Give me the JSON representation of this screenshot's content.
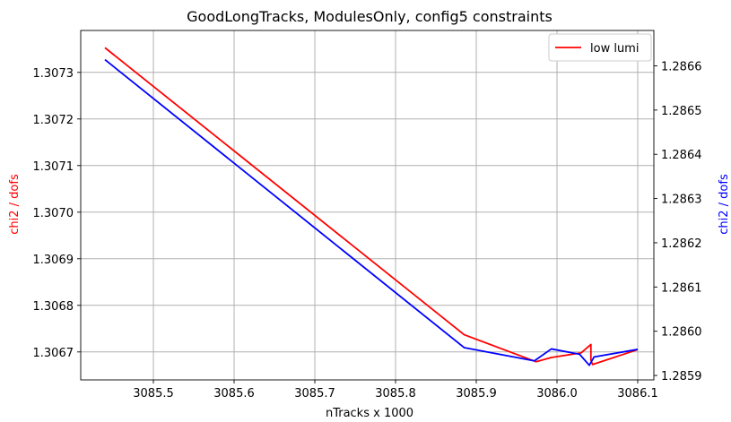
{
  "chart_data": {
    "type": "line",
    "title": "GoodLongTracks, ModulesOnly, config5 constraints",
    "xlabel": "nTracks x 1000",
    "ylabel_left": "chi2 / dofs",
    "ylabel_right": "chi2 / dofs",
    "xlim": [
      3085.41,
      3086.12
    ],
    "ylim_left": [
      1.30664,
      1.30739
    ],
    "ylim_right": [
      1.28589,
      1.28668
    ],
    "xticks": [
      "3085.5",
      "3085.6",
      "3085.7",
      "3085.8",
      "3085.9",
      "3086.0",
      "3086.1"
    ],
    "xtick_values": [
      3085.5,
      3085.6,
      3085.7,
      3085.8,
      3085.9,
      3086.0,
      3086.1
    ],
    "yticks_left": [
      "1.3067",
      "1.3068",
      "1.3069",
      "1.3070",
      "1.3071",
      "1.3072",
      "1.3073"
    ],
    "ytick_values_left": [
      1.3067,
      1.3068,
      1.3069,
      1.307,
      1.3071,
      1.3072,
      1.3073
    ],
    "yticks_right": [
      "1.2859",
      "1.2860",
      "1.2861",
      "1.2862",
      "1.2863",
      "1.2864",
      "1.2865",
      "1.2866"
    ],
    "ytick_values_right": [
      1.2859,
      1.286,
      1.2861,
      1.2862,
      1.2863,
      1.2864,
      1.2865,
      1.2866
    ],
    "grid": true,
    "legend_position": "top-right",
    "series": [
      {
        "name": "low lumi",
        "axis": "left",
        "color": "#ff0000",
        "x": [
          3085.44,
          3085.885,
          3085.974,
          3085.993,
          3086.03,
          3086.042,
          3086.042,
          3086.044,
          3086.1
        ],
        "y": [
          1.307353,
          1.306737,
          1.306679,
          1.306688,
          1.306698,
          1.306716,
          1.306683,
          1.306673,
          1.306705
        ]
      },
      {
        "name": "",
        "axis": "right",
        "color": "#0000ff",
        "x": [
          3085.44,
          3085.885,
          3085.972,
          3085.993,
          3086.028,
          3086.04,
          3086.046,
          3086.1
        ],
        "y": [
          1.286614,
          1.285963,
          1.285933,
          1.28596,
          1.285948,
          1.285923,
          1.285942,
          1.285959
        ]
      }
    ]
  },
  "colors": {
    "grid": "#b0b0b0",
    "axis": "#000000",
    "left_label": "#ff0000",
    "right_label": "#0000ff"
  }
}
